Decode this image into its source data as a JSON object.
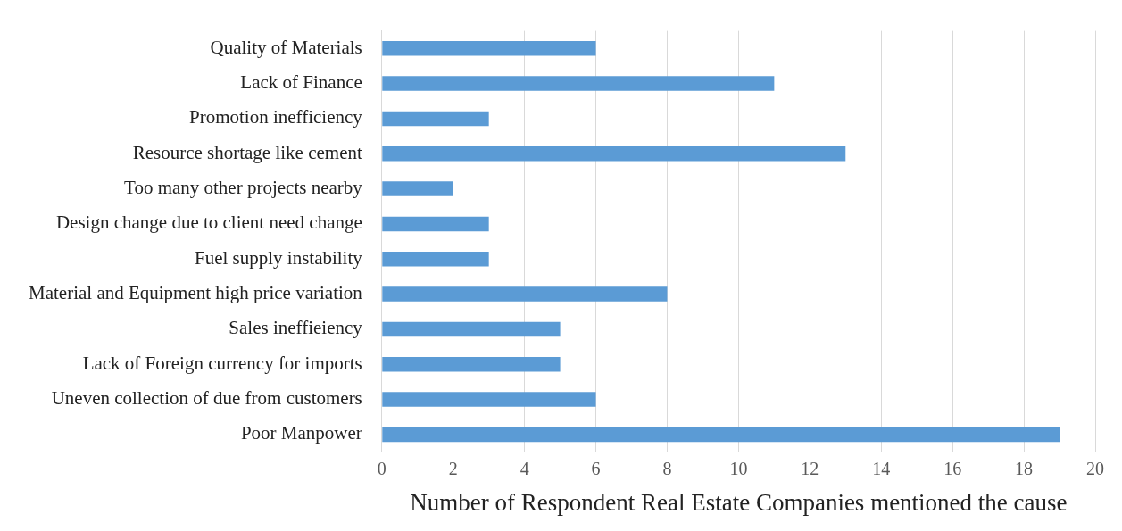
{
  "chart_data": {
    "type": "bar",
    "orientation": "horizontal",
    "xlabel": "Number of Respondent Real Estate Companies mentioned the cause",
    "categories": [
      "Quality of Materials",
      "Lack of Finance",
      "Promotion inefficiency",
      "Resource shortage like cement",
      "Too many other projects nearby",
      "Design change due to client need change",
      "Fuel supply instability",
      "Material and Equipment high price variation",
      "Sales ineffieiency",
      "Lack of Foreign currency for imports",
      "Uneven collection of due from customers",
      "Poor Manpower"
    ],
    "values": [
      6,
      11,
      3,
      13,
      2,
      3,
      3,
      8,
      5,
      5,
      6,
      19
    ],
    "color": "#5b9bd5",
    "xlim": [
      0,
      20
    ],
    "xticks": [
      0,
      2,
      4,
      6,
      8,
      10,
      12,
      14,
      16,
      18,
      20
    ],
    "grid": "x",
    "legend": false
  }
}
